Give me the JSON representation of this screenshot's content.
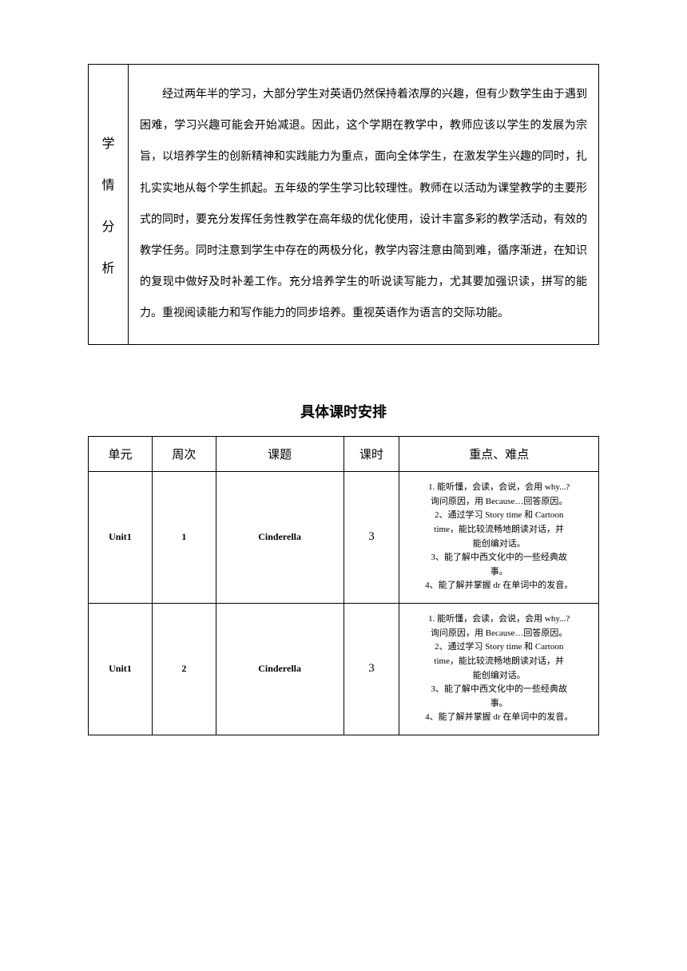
{
  "analysis": {
    "label_chars": [
      "学",
      "情",
      "分",
      "析"
    ],
    "paragraph": "经过两年半的学习，大部分学生对英语仍然保持着浓厚的兴趣，但有少数学生由于遇到困难，学习兴趣可能会开始减退。因此，这个学期在教学中，教师应该以学生的发展为宗旨，以培养学生的创新精神和实践能力为重点，面向全体学生，在激发学生兴趣的同时，扎扎实实地从每个学生抓起。五年级的学生学习比较理性。教师在以活动为课堂教学的主要形式的同时，要充分发挥任务性教学在高年级的优化使用，设计丰富多彩的教学活动，有效的教学任务。同时注意到学生中存在的两极分化，教学内容注意由简到难，循序渐进，在知识的复现中做好及时补差工作。充分培养学生的听说读写能力，尤其要加强识读，拼写的能力。重视阅读能力和写作能力的同步培养。重视英语作为语言的交际功能。"
  },
  "schedule": {
    "title": "具体课时安排",
    "headers": {
      "unit": "单元",
      "week": "周次",
      "topic": "课题",
      "hours": "课时",
      "points": "重点、难点"
    },
    "rows": [
      {
        "unit": "Unit1",
        "week": "1",
        "topic": "Cinderella",
        "hours": "3",
        "points": [
          "1. 能听懂，会读，会说，会用 why...?",
          "询问原因，用 Because…回答原因。",
          "2、通过学习 Story time 和 Cartoon",
          "time，能比较流畅地朗读对话，并",
          "能创编对话。",
          "3、能了解中西文化中的一些经典故",
          "事。",
          "4、能了解并掌握 dr 在单词中的发音。"
        ]
      },
      {
        "unit": "Unit1",
        "week": "2",
        "topic": "Cinderella",
        "hours": "3",
        "points": [
          "1. 能听懂，会读，会说，会用 why...?",
          "询问原因，用 Because…回答原因。",
          "2、通过学习 Story time 和 Cartoon",
          "time，能比较流畅地朗读对话，并",
          "能创编对话。",
          "3、能了解中西文化中的一些经典故",
          "事。",
          "4、能了解并掌握 dr 在单词中的发音。"
        ]
      }
    ]
  },
  "styles": {
    "page_bg": "#ffffff",
    "text_color": "#000000",
    "border_color": "#000000",
    "body_width": 860,
    "body_height": 1216
  }
}
